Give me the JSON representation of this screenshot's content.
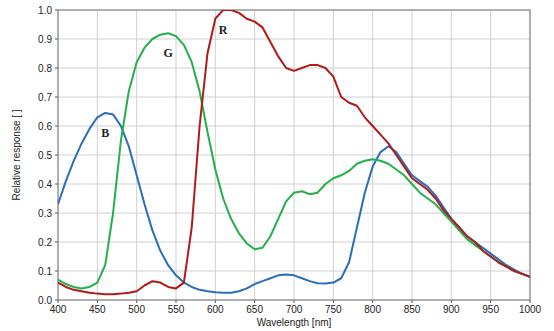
{
  "chart_data": {
    "type": "line",
    "x_label": "Wavelength [nm]",
    "y_label": "Relative response [ ]",
    "x": [
      400,
      410,
      420,
      430,
      440,
      450,
      460,
      470,
      480,
      490,
      500,
      510,
      520,
      530,
      540,
      550,
      560,
      570,
      580,
      590,
      600,
      610,
      620,
      630,
      640,
      650,
      660,
      670,
      680,
      690,
      700,
      710,
      720,
      730,
      740,
      750,
      760,
      770,
      780,
      790,
      800,
      810,
      820,
      830,
      840,
      850,
      860,
      870,
      880,
      890,
      900,
      910,
      920,
      930,
      940,
      950,
      960,
      970,
      980,
      990,
      1000
    ],
    "series": [
      {
        "name": "B",
        "color": "#2a6ebb",
        "values": [
          0.33,
          0.41,
          0.48,
          0.54,
          0.59,
          0.63,
          0.645,
          0.64,
          0.6,
          0.53,
          0.43,
          0.33,
          0.24,
          0.17,
          0.12,
          0.085,
          0.06,
          0.045,
          0.035,
          0.03,
          0.027,
          0.025,
          0.025,
          0.03,
          0.04,
          0.055,
          0.065,
          0.075,
          0.085,
          0.088,
          0.085,
          0.075,
          0.065,
          0.058,
          0.057,
          0.06,
          0.075,
          0.13,
          0.25,
          0.37,
          0.46,
          0.51,
          0.53,
          0.51,
          0.47,
          0.43,
          0.41,
          0.39,
          0.36,
          0.32,
          0.28,
          0.25,
          0.22,
          0.2,
          0.18,
          0.16,
          0.14,
          0.12,
          0.105,
          0.09,
          0.08
        ]
      },
      {
        "name": "G",
        "color": "#22b04a",
        "values": [
          0.07,
          0.055,
          0.045,
          0.04,
          0.045,
          0.06,
          0.12,
          0.3,
          0.55,
          0.72,
          0.82,
          0.87,
          0.9,
          0.915,
          0.92,
          0.91,
          0.88,
          0.82,
          0.72,
          0.58,
          0.45,
          0.35,
          0.28,
          0.23,
          0.195,
          0.175,
          0.18,
          0.22,
          0.28,
          0.34,
          0.37,
          0.375,
          0.365,
          0.37,
          0.4,
          0.42,
          0.43,
          0.445,
          0.47,
          0.48,
          0.485,
          0.48,
          0.47,
          0.45,
          0.43,
          0.4,
          0.37,
          0.35,
          0.33,
          0.3,
          0.27,
          0.24,
          0.21,
          0.19,
          0.17,
          0.15,
          0.13,
          0.115,
          0.1,
          0.09,
          0.08
        ]
      },
      {
        "name": "R",
        "color": "#b01a1a",
        "values": [
          0.06,
          0.045,
          0.035,
          0.03,
          0.025,
          0.022,
          0.02,
          0.02,
          0.022,
          0.025,
          0.03,
          0.05,
          0.065,
          0.06,
          0.045,
          0.04,
          0.06,
          0.25,
          0.6,
          0.85,
          0.97,
          1.0,
          1.0,
          0.99,
          0.97,
          0.96,
          0.94,
          0.89,
          0.84,
          0.8,
          0.79,
          0.8,
          0.81,
          0.81,
          0.8,
          0.77,
          0.7,
          0.68,
          0.67,
          0.63,
          0.6,
          0.57,
          0.54,
          0.5,
          0.46,
          0.42,
          0.4,
          0.38,
          0.35,
          0.31,
          0.28,
          0.25,
          0.22,
          0.2,
          0.17,
          0.15,
          0.13,
          0.115,
          0.1,
          0.09,
          0.08
        ]
      }
    ],
    "xlim": [
      400,
      1000
    ],
    "xticks": [
      400,
      450,
      500,
      550,
      600,
      650,
      700,
      750,
      800,
      850,
      900,
      950,
      1000
    ],
    "ylim": [
      0,
      1
    ],
    "yticks": [
      {
        "value": 0,
        "label": "0.0"
      },
      0.1,
      0.2,
      0.3,
      0.4,
      0.5,
      0.6,
      0.7,
      0.8,
      0.9,
      {
        "value": 1,
        "label": "1.0"
      }
    ],
    "grid": true
  }
}
